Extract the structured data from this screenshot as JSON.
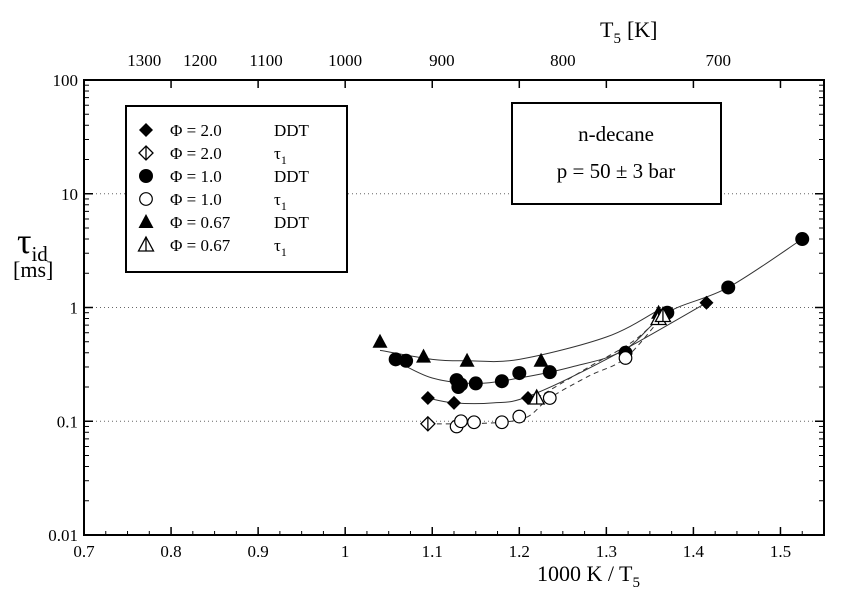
{
  "chart_data": {
    "type": "scatter",
    "title": "",
    "xlabel": "1000 K / T",
    "xlabel_sub": "5",
    "ylabel": "τ",
    "ylabel_sub": "id",
    "ylabel_unit": "[ms]",
    "top_label": "T",
    "top_label_sub": "5",
    "top_label_unit": "[K]",
    "xlim": [
      0.7,
      1.55
    ],
    "ylim": [
      0.01,
      100
    ],
    "yscale": "log",
    "grid": "horizontal dotted at decades",
    "x_ticks": [
      "0.7",
      "0.8",
      "0.9",
      "1",
      "1.1",
      "1.2",
      "1.3",
      "1.4",
      "1.5"
    ],
    "y_ticks": [
      "0.01",
      "0.1",
      "1",
      "10",
      "100"
    ],
    "top_ticks": [
      "1300",
      "1200",
      "1100",
      "1000",
      "900",
      "800",
      "700"
    ],
    "top_tick_temps": [
      1300,
      1200,
      1100,
      1000,
      900,
      800,
      700
    ],
    "legend_position": "top-left",
    "annotation": {
      "line1": "n-decane",
      "line2": "p = 50 ± 3 bar"
    },
    "series": [
      {
        "name": "Φ = 2.0",
        "label": "DDT",
        "marker": "diamond-filled",
        "x": [
          1.095,
          1.125,
          1.21,
          1.415
        ],
        "y": [
          0.16,
          0.145,
          0.16,
          1.1
        ]
      },
      {
        "name": "Φ = 2.0",
        "label": "τ",
        "label_sub": "1",
        "marker": "diamond-half",
        "x": [
          1.095
        ],
        "y": [
          0.095
        ]
      },
      {
        "name": "Φ = 1.0",
        "label": "DDT",
        "marker": "circle-filled",
        "x": [
          1.058,
          1.07,
          1.128,
          1.13,
          1.133,
          1.15,
          1.18,
          1.2,
          1.235,
          1.322,
          1.37,
          1.44,
          1.525
        ],
        "y": [
          0.35,
          0.34,
          0.23,
          0.2,
          0.21,
          0.215,
          0.225,
          0.265,
          0.27,
          0.4,
          0.9,
          1.5,
          4.0
        ]
      },
      {
        "name": "Φ = 1.0",
        "label": "τ",
        "label_sub": "1",
        "marker": "circle-open",
        "x": [
          1.128,
          1.133,
          1.148,
          1.18,
          1.2,
          1.235,
          1.322
        ],
        "y": [
          0.09,
          0.1,
          0.098,
          0.098,
          0.11,
          0.16,
          0.36
        ]
      },
      {
        "name": "Φ = 0.67",
        "label": "DDT",
        "marker": "triangle-filled",
        "x": [
          1.04,
          1.09,
          1.14,
          1.225,
          1.36
        ],
        "y": [
          0.5,
          0.37,
          0.34,
          0.34,
          0.9
        ]
      },
      {
        "name": "Φ = 0.67",
        "label": "τ",
        "label_sub": "1",
        "marker": "triangle-half",
        "x": [
          1.22,
          1.36,
          1.365
        ],
        "y": [
          0.16,
          0.8,
          0.85
        ]
      }
    ],
    "fit_curves": [
      {
        "style": "solid",
        "x": [
          1.04,
          1.1,
          1.14,
          1.2,
          1.3,
          1.36
        ],
        "y": [
          0.42,
          0.35,
          0.34,
          0.35,
          0.55,
          0.95
        ]
      },
      {
        "style": "solid",
        "x": [
          1.058,
          1.1,
          1.15,
          1.2,
          1.26,
          1.32,
          1.37,
          1.44,
          1.525
        ],
        "y": [
          0.34,
          0.24,
          0.215,
          0.24,
          0.3,
          0.42,
          0.9,
          1.5,
          4.0
        ]
      },
      {
        "style": "solid",
        "x": [
          1.095,
          1.125,
          1.17,
          1.21,
          1.3,
          1.415
        ],
        "y": [
          0.16,
          0.145,
          0.145,
          0.165,
          0.35,
          1.1
        ]
      },
      {
        "style": "dashed",
        "x": [
          1.095,
          1.13,
          1.18,
          1.21,
          1.235,
          1.28,
          1.322,
          1.365
        ],
        "y": [
          0.095,
          0.095,
          0.098,
          0.11,
          0.16,
          0.25,
          0.36,
          0.85
        ]
      },
      {
        "style": "dashed",
        "x": [
          1.22,
          1.28,
          1.33,
          1.36
        ],
        "y": [
          0.16,
          0.3,
          0.5,
          0.8
        ]
      }
    ]
  }
}
